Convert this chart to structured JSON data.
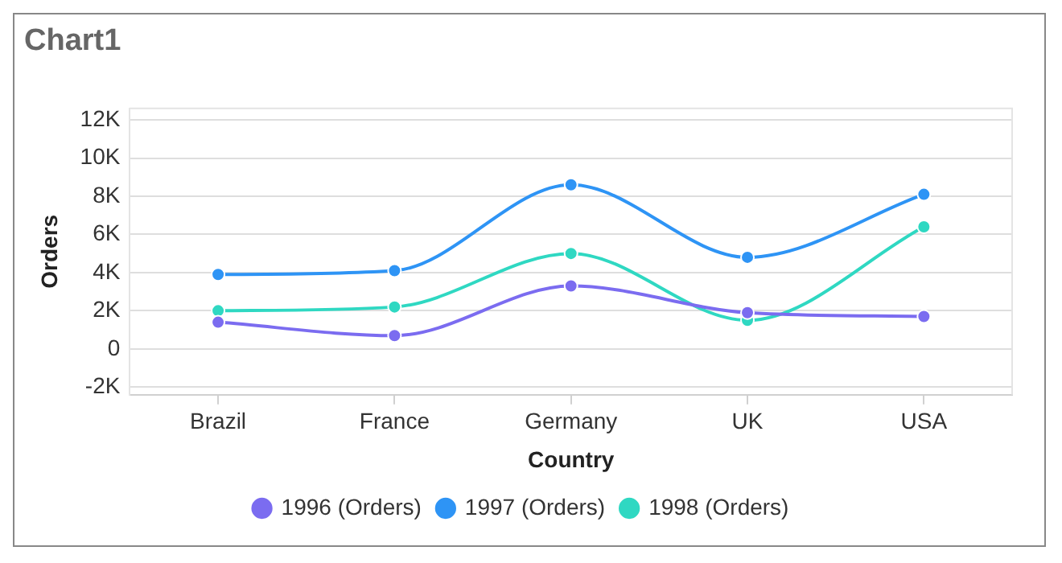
{
  "chart_data": {
    "type": "line",
    "title": "Chart1",
    "xlabel": "Country",
    "ylabel": "Orders",
    "categories": [
      "Brazil",
      "France",
      "Germany",
      "UK",
      "USA"
    ],
    "series": [
      {
        "name": "1996 (Orders)",
        "color": "#7b6cf0",
        "values": [
          1400,
          700,
          3300,
          1900,
          1700
        ]
      },
      {
        "name": "1997 (Orders)",
        "color": "#2e94f5",
        "values": [
          3900,
          4100,
          8600,
          4800,
          8100
        ]
      },
      {
        "name": "1998 (Orders)",
        "color": "#2fd8c2",
        "values": [
          2000,
          2200,
          5000,
          1500,
          6400
        ]
      }
    ],
    "ylim": [
      -2400,
      12600
    ],
    "yticks": [
      {
        "value": -2000,
        "label": "-2K"
      },
      0,
      {
        "value": 2000,
        "label": "2K"
      },
      {
        "value": 4000,
        "label": "4K"
      },
      {
        "value": 6000,
        "label": "6K"
      },
      {
        "value": 8000,
        "label": "8K"
      },
      {
        "value": 10000,
        "label": "10K"
      },
      {
        "value": 12000,
        "label": "12K"
      }
    ],
    "grid": "y",
    "legend": "bottom",
    "marker": "circle",
    "line_style": "solid"
  }
}
